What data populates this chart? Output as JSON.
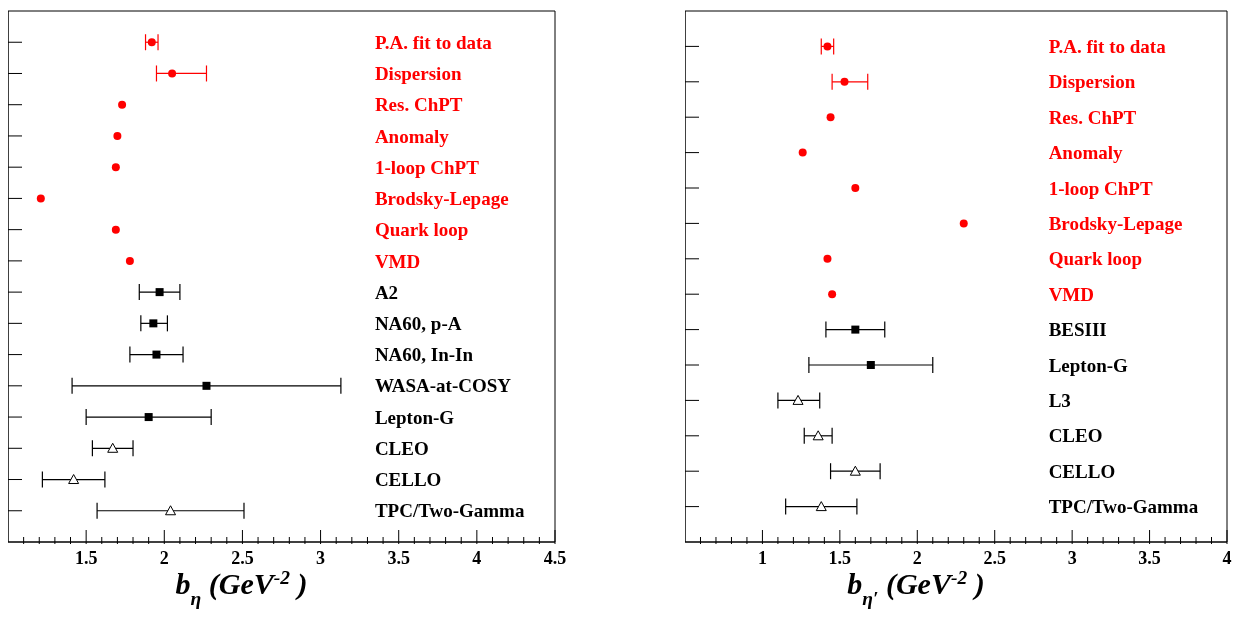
{
  "chart_data": [
    {
      "type": "scatter",
      "orientation": "horizontal",
      "categories": [
        "P.A. fit to data",
        "Dispersion",
        "Res. ChPT",
        "Anomaly",
        "1-loop ChPT",
        "Brodsky-Lepage",
        "Quark loop",
        "VMD",
        "A2",
        "NA60, p-A",
        "NA60, In-In",
        "WASA-at-COSY",
        "Lepton-G",
        "CLEO",
        "CELLO",
        "TPC/Two-Gamma"
      ],
      "series": [
        {
          "color": "#ff0000",
          "marker": "circle",
          "values": [
            1.92,
            2.05,
            1.73,
            1.7,
            1.69,
            1.21,
            1.69,
            1.78,
            null,
            null,
            null,
            null,
            null,
            null,
            null,
            null
          ],
          "errors": [
            [
              1.88,
              1.96
            ],
            [
              1.95,
              2.27
            ],
            null,
            null,
            null,
            null,
            null,
            null,
            null,
            null,
            null,
            null,
            null,
            null,
            null,
            null
          ]
        },
        {
          "color": "#000000",
          "marker": "square",
          "values": [
            null,
            null,
            null,
            null,
            null,
            null,
            null,
            null,
            1.97,
            1.93,
            1.95,
            2.27,
            1.9,
            null,
            null,
            null
          ],
          "errors": [
            null,
            null,
            null,
            null,
            null,
            null,
            null,
            null,
            [
              1.84,
              2.1
            ],
            [
              1.85,
              2.02
            ],
            [
              1.78,
              2.12
            ],
            [
              1.41,
              3.13
            ],
            [
              1.5,
              2.3
            ],
            null,
            null,
            null
          ]
        },
        {
          "color": "#000000",
          "marker": "triangle",
          "values": [
            null,
            null,
            null,
            null,
            null,
            null,
            null,
            null,
            null,
            null,
            null,
            null,
            null,
            1.67,
            1.42,
            2.04
          ],
          "errors": [
            null,
            null,
            null,
            null,
            null,
            null,
            null,
            null,
            null,
            null,
            null,
            null,
            null,
            [
              1.54,
              1.8
            ],
            [
              1.22,
              1.62
            ],
            [
              1.57,
              2.51
            ]
          ]
        }
      ],
      "xlabel": "b$_{η}$ (GeV$^{-2}$)",
      "xlim": [
        1,
        4.5
      ],
      "xticks": [
        {
          "value": 1.1,
          "label": null
        },
        {
          "value": 1.2,
          "label": null
        },
        {
          "value": 1.3,
          "label": null
        },
        {
          "value": 1.4,
          "label": null
        },
        1.5,
        {
          "value": 1.6,
          "label": null
        },
        {
          "value": 1.7,
          "label": null
        },
        {
          "value": 1.8,
          "label": null
        },
        {
          "value": 1.9,
          "label": null
        },
        2,
        {
          "value": 2.1,
          "label": null
        },
        {
          "value": 2.2,
          "label": null
        },
        {
          "value": 2.3,
          "label": null
        },
        {
          "value": 2.4,
          "label": null
        },
        2.5,
        {
          "value": 2.6,
          "label": null
        },
        {
          "value": 2.7,
          "label": null
        },
        {
          "value": 2.8,
          "label": null
        },
        {
          "value": 2.9,
          "label": null
        },
        3,
        {
          "value": 3.1,
          "label": null
        },
        {
          "value": 3.2,
          "label": null
        },
        {
          "value": 3.3,
          "label": null
        },
        {
          "value": 3.4,
          "label": null
        },
        3.5,
        {
          "value": 3.6,
          "label": null
        },
        {
          "value": 3.7,
          "label": null
        },
        {
          "value": 3.8,
          "label": null
        },
        {
          "value": 3.9,
          "label": null
        },
        4,
        {
          "value": 4.1,
          "label": null
        },
        {
          "value": 4.2,
          "label": null
        },
        {
          "value": 4.3,
          "label": null
        },
        {
          "value": 4.4,
          "label": null
        },
        4.5
      ]
    },
    {
      "type": "scatter",
      "orientation": "horizontal",
      "categories": [
        "P.A. fit to data",
        "Dispersion",
        "Res. ChPT",
        "Anomaly",
        "1-loop ChPT",
        "Brodsky-Lepage",
        "Quark loop",
        "VMD",
        "BESIII",
        "Lepton-G",
        "L3",
        "CLEO",
        "CELLO",
        "TPC/Two-Gamma"
      ],
      "series": [
        {
          "color": "#ff0000",
          "marker": "circle",
          "values": [
            1.42,
            1.53,
            1.44,
            1.26,
            1.6,
            2.3,
            1.42,
            1.45,
            null,
            null,
            null,
            null,
            null,
            null
          ],
          "errors": [
            [
              1.38,
              1.46
            ],
            [
              1.45,
              1.68
            ],
            null,
            null,
            null,
            null,
            null,
            null,
            null,
            null,
            null,
            null,
            null,
            null
          ]
        },
        {
          "color": "#000000",
          "marker": "square",
          "values": [
            null,
            null,
            null,
            null,
            null,
            null,
            null,
            null,
            1.6,
            1.7,
            null,
            null,
            null,
            null
          ],
          "errors": [
            null,
            null,
            null,
            null,
            null,
            null,
            null,
            null,
            [
              1.41,
              1.79
            ],
            [
              1.3,
              2.1
            ],
            null,
            null,
            null,
            null
          ]
        },
        {
          "color": "#000000",
          "marker": "triangle",
          "values": [
            null,
            null,
            null,
            null,
            null,
            null,
            null,
            null,
            null,
            null,
            1.23,
            1.36,
            1.6,
            1.38
          ],
          "errors": [
            null,
            null,
            null,
            null,
            null,
            null,
            null,
            null,
            null,
            null,
            [
              1.1,
              1.37
            ],
            [
              1.27,
              1.45
            ],
            [
              1.44,
              1.76
            ],
            [
              1.15,
              1.61
            ]
          ]
        }
      ],
      "xlabel": "b$_{η′}$ (GeV$^{-2}$)",
      "xlim": [
        0.5,
        4
      ],
      "xticks": [
        {
          "value": 0.6,
          "label": null
        },
        {
          "value": 0.7,
          "label": null
        },
        {
          "value": 0.8,
          "label": null
        },
        {
          "value": 0.9,
          "label": null
        },
        1,
        {
          "value": 1.1,
          "label": null
        },
        {
          "value": 1.2,
          "label": null
        },
        {
          "value": 1.3,
          "label": null
        },
        {
          "value": 1.4,
          "label": null
        },
        1.5,
        {
          "value": 1.6,
          "label": null
        },
        {
          "value": 1.7,
          "label": null
        },
        {
          "value": 1.8,
          "label": null
        },
        {
          "value": 1.9,
          "label": null
        },
        2,
        {
          "value": 2.1,
          "label": null
        },
        {
          "value": 2.2,
          "label": null
        },
        {
          "value": 2.3,
          "label": null
        },
        {
          "value": 2.4,
          "label": null
        },
        2.5,
        {
          "value": 2.6,
          "label": null
        },
        {
          "value": 2.7,
          "label": null
        },
        {
          "value": 2.8,
          "label": null
        },
        {
          "value": 2.9,
          "label": null
        },
        3,
        {
          "value": 3.1,
          "label": null
        },
        {
          "value": 3.2,
          "label": null
        },
        {
          "value": 3.3,
          "label": null
        },
        {
          "value": 3.4,
          "label": null
        },
        3.5,
        {
          "value": 3.6,
          "label": null
        },
        {
          "value": 3.7,
          "label": null
        },
        {
          "value": 3.8,
          "label": null
        },
        {
          "value": 3.9,
          "label": null
        },
        4
      ]
    }
  ]
}
